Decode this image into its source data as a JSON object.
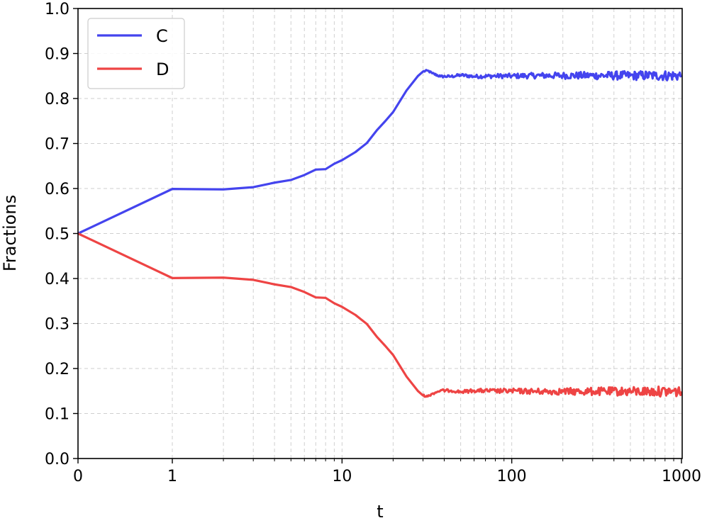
{
  "chart_data": {
    "type": "line",
    "xlabel": "t",
    "ylabel": "Fractions",
    "xscale": "symlog",
    "xlim": [
      0,
      1000
    ],
    "ylim": [
      0.0,
      1.0
    ],
    "grid": true,
    "legend_position": "upper-left",
    "x_tick_labels": [
      "0",
      "1",
      "10",
      "100",
      "1000"
    ],
    "y_tick_labels": [
      "0.0",
      "0.1",
      "0.2",
      "0.3",
      "0.4",
      "0.5",
      "0.6",
      "0.7",
      "0.8",
      "0.9",
      "1.0"
    ],
    "series": [
      {
        "name": "C",
        "color": "#4444ee",
        "x": [
          0,
          1,
          2,
          3,
          4,
          5,
          6,
          7,
          8,
          9,
          10,
          12,
          14,
          16,
          18,
          20,
          24,
          28,
          30,
          32,
          34,
          38,
          44,
          50,
          60,
          80,
          100,
          150,
          200,
          300,
          500,
          700,
          1000
        ],
        "y": [
          0.5,
          0.599,
          0.598,
          0.603,
          0.613,
          0.619,
          0.63,
          0.642,
          0.643,
          0.655,
          0.663,
          0.681,
          0.701,
          0.729,
          0.75,
          0.77,
          0.818,
          0.85,
          0.86,
          0.862,
          0.856,
          0.849,
          0.849,
          0.852,
          0.849,
          0.85,
          0.85,
          0.851,
          0.851,
          0.851,
          0.851,
          0.851,
          0.851
        ]
      },
      {
        "name": "D",
        "color": "#ee4444",
        "x": [
          0,
          1,
          2,
          3,
          4,
          5,
          6,
          7,
          8,
          9,
          10,
          12,
          14,
          16,
          18,
          20,
          24,
          28,
          30,
          32,
          34,
          38,
          44,
          50,
          60,
          80,
          100,
          150,
          200,
          300,
          500,
          700,
          1000
        ],
        "y": [
          0.5,
          0.401,
          0.402,
          0.397,
          0.387,
          0.381,
          0.37,
          0.358,
          0.357,
          0.345,
          0.337,
          0.319,
          0.299,
          0.271,
          0.25,
          0.23,
          0.182,
          0.15,
          0.14,
          0.138,
          0.144,
          0.151,
          0.151,
          0.148,
          0.151,
          0.15,
          0.15,
          0.149,
          0.149,
          0.149,
          0.149,
          0.149,
          0.149
        ]
      }
    ],
    "noise_from_x": 30,
    "noise_amplitude_start": 0.002,
    "noise_amplitude_end": 0.012
  }
}
